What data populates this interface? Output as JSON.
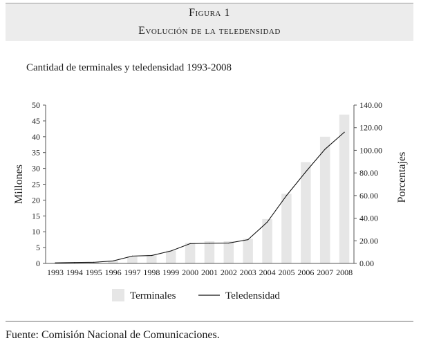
{
  "figure": {
    "title": "Figura 1",
    "subtitle": "Evolución de la teledensidad"
  },
  "source": "Fuente: Comisión Nacional de Comunicaciones.",
  "chart_data": {
    "type": "bar",
    "title": "Cantidad de terminales y teledensidad 1993-2008",
    "categories": [
      "1993",
      "1994",
      "1995",
      "1996",
      "1997",
      "1998",
      "1999",
      "2000",
      "2001",
      "2002",
      "2003",
      "2004",
      "2005",
      "2006",
      "2007",
      "2008"
    ],
    "ylabel": "Millones",
    "y2label": "Porcentajes",
    "ylim": [
      0,
      50
    ],
    "y2lim": [
      0,
      140
    ],
    "yticks": [
      "0",
      "5",
      "10",
      "15",
      "20",
      "25",
      "30",
      "35",
      "40",
      "45",
      "50"
    ],
    "y2ticks": [
      "0.00",
      "20.00",
      "40.00",
      "60.00",
      "80.00",
      "100.00",
      "120.00",
      "140.00"
    ],
    "series": [
      {
        "name": "Terminales",
        "type": "bar",
        "axis": "left",
        "color": "#e6e6e6",
        "values": [
          0.2,
          0.3,
          0.4,
          0.7,
          2.2,
          2.7,
          4.0,
          6.5,
          7.0,
          7.0,
          7.8,
          14.0,
          22.0,
          32.0,
          40.0,
          47.0
        ]
      },
      {
        "name": "Teledensidad",
        "type": "line",
        "axis": "right",
        "color": "#111111",
        "values": [
          0.5,
          0.8,
          1.0,
          2.2,
          6.5,
          7.0,
          11.0,
          17.5,
          17.8,
          18.0,
          21.0,
          36.5,
          60.0,
          81.0,
          101.0,
          116.0
        ]
      }
    ],
    "legend": "bottom",
    "grid": false
  }
}
